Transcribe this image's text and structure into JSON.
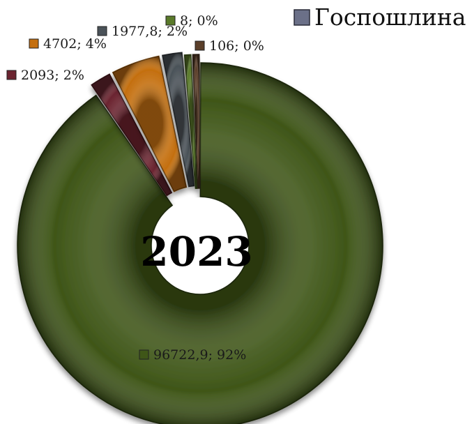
{
  "chart_data": {
    "type": "pie",
    "variant": "doughnut-exploded",
    "center_label": "2023",
    "slices": [
      {
        "value": 96722.9,
        "label": "96722,9; 92%",
        "color": "#3f5618"
      },
      {
        "value": 2093,
        "label": "2093; 2%",
        "color": "#6b2430"
      },
      {
        "value": 4702,
        "label": "4702; 4%",
        "color": "#c46f0f"
      },
      {
        "value": 1977.8,
        "label": "1977,8; 2%",
        "color": "#4a5258"
      },
      {
        "value": 8,
        "label": "8; 0%",
        "color": "#5a7a2a"
      },
      {
        "value": 106,
        "label": "106; 0%",
        "color": "#5b3f2a"
      }
    ],
    "legend": {
      "position": "top-right",
      "entries": [
        {
          "name": "Госпошлина",
          "color": "#6b7088"
        }
      ]
    }
  }
}
